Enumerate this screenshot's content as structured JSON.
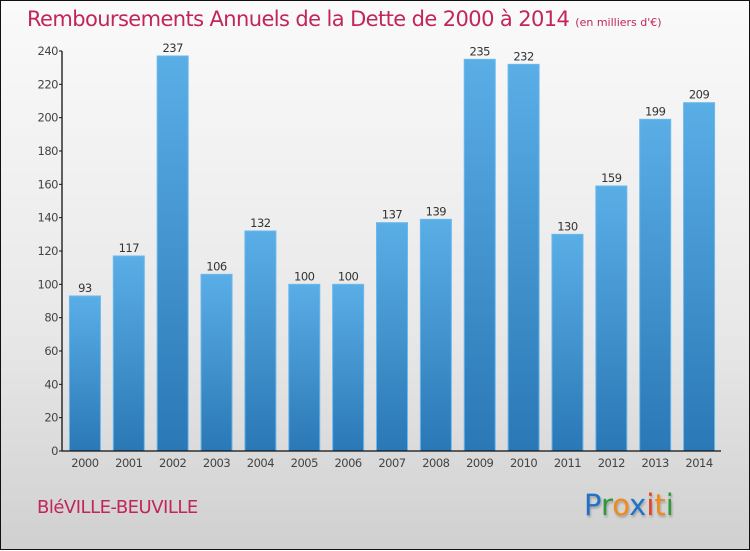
{
  "chart_data": {
    "type": "bar",
    "title": "Remboursements Annuels de la Dette de 2000 à 2014",
    "subtitle": "(en milliers d'€)",
    "xlabel": "",
    "ylabel": "",
    "categories": [
      "2000",
      "2001",
      "2002",
      "2003",
      "2004",
      "2005",
      "2006",
      "2007",
      "2008",
      "2009",
      "2010",
      "2011",
      "2012",
      "2013",
      "2014"
    ],
    "values": [
      93,
      117,
      237,
      106,
      132,
      100,
      100,
      137,
      139,
      235,
      232,
      130,
      159,
      199,
      209
    ],
    "ylim": [
      0,
      240
    ],
    "yticks": [
      0,
      20,
      40,
      60,
      80,
      100,
      120,
      140,
      160,
      180,
      200,
      220,
      240
    ],
    "grid": false,
    "legend": "none",
    "bar_color": "#3d8fd4"
  },
  "footer": {
    "town": "BléVILLE-BEUVILLE",
    "logo_letters": [
      {
        "ch": "P",
        "color": "#1e73c8"
      },
      {
        "ch": "r",
        "color": "#2e9a3c"
      },
      {
        "ch": "o",
        "color": "#f08a1a"
      },
      {
        "ch": "x",
        "color": "#1e73c8"
      },
      {
        "ch": "i",
        "color": "#e0402a"
      },
      {
        "ch": "t",
        "color": "#f08a1a"
      },
      {
        "ch": "i",
        "color": "#2e9a3c"
      }
    ]
  }
}
